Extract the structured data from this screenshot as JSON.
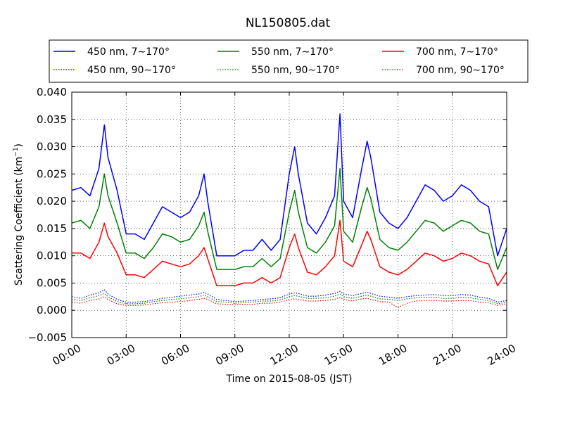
{
  "chart_data": {
    "type": "line",
    "title": "NL150805.dat",
    "xlabel": "Time on 2015-08-05 (JST)",
    "ylabel": "Scattering Coefficient (km",
    "ylabel_sup": "−1",
    "ylabel_end": ")",
    "xlim_hours": [
      0,
      24
    ],
    "ylim": [
      -0.005,
      0.04
    ],
    "grid": true,
    "legend_position": "above plot, 3 columns",
    "x_ticks": [
      {
        "hour": 0,
        "label": "00:00"
      },
      {
        "hour": 3,
        "label": "03:00"
      },
      {
        "hour": 6,
        "label": "06:00"
      },
      {
        "hour": 9,
        "label": "09:00"
      },
      {
        "hour": 12,
        "label": "12:00"
      },
      {
        "hour": 15,
        "label": "15:00"
      },
      {
        "hour": 18,
        "label": "18:00"
      },
      {
        "hour": 21,
        "label": "21:00"
      },
      {
        "hour": 24,
        "label": "24:00"
      }
    ],
    "y_ticks": [
      {
        "value": -0.005,
        "label": "−0.005"
      },
      {
        "value": 0.0,
        "label": "0.000"
      },
      {
        "value": 0.005,
        "label": "0.005"
      },
      {
        "value": 0.01,
        "label": "0.010"
      },
      {
        "value": 0.015,
        "label": "0.015"
      },
      {
        "value": 0.02,
        "label": "0.020"
      },
      {
        "value": 0.025,
        "label": "0.025"
      },
      {
        "value": 0.03,
        "label": "0.030"
      },
      {
        "value": 0.035,
        "label": "0.035"
      },
      {
        "value": 0.04,
        "label": "0.040"
      }
    ],
    "x_hours": [
      0,
      0.5,
      1,
      1.5,
      1.8,
      2,
      2.5,
      3,
      3.5,
      4,
      4.5,
      5,
      5.5,
      6,
      6.5,
      7,
      7.3,
      7.5,
      8,
      8.5,
      9,
      9.5,
      10,
      10.5,
      11,
      11.5,
      12,
      12.3,
      12.5,
      13,
      13.5,
      14,
      14.5,
      14.8,
      15,
      15.5,
      16,
      16.3,
      16.5,
      17,
      17.5,
      18,
      18.5,
      19,
      19.5,
      20,
      20.5,
      21,
      21.5,
      22,
      22.5,
      23,
      23.5,
      24
    ],
    "series": [
      {
        "name": "450 nm, 7∼170°",
        "color": "#0000ff",
        "style": "solid",
        "values": [
          0.022,
          0.0225,
          0.021,
          0.026,
          0.034,
          0.028,
          0.022,
          0.014,
          0.014,
          0.013,
          0.016,
          0.019,
          0.018,
          0.017,
          0.018,
          0.021,
          0.025,
          0.02,
          0.01,
          0.01,
          0.01,
          0.011,
          0.011,
          0.013,
          0.011,
          0.013,
          0.025,
          0.03,
          0.025,
          0.016,
          0.014,
          0.017,
          0.021,
          0.036,
          0.02,
          0.017,
          0.026,
          0.031,
          0.028,
          0.018,
          0.016,
          0.015,
          0.017,
          0.02,
          0.023,
          0.022,
          0.02,
          0.021,
          0.023,
          0.022,
          0.02,
          0.019,
          0.01,
          0.015
        ]
      },
      {
        "name": "450 nm, 90∼170°",
        "color": "#0000ff",
        "style": "dotted",
        "values": [
          0.0025,
          0.0022,
          0.0028,
          0.0032,
          0.0038,
          0.003,
          0.002,
          0.0015,
          0.0015,
          0.0016,
          0.0019,
          0.0022,
          0.0024,
          0.0026,
          0.0028,
          0.003,
          0.0033,
          0.003,
          0.002,
          0.0018,
          0.0016,
          0.0017,
          0.0018,
          0.002,
          0.0021,
          0.0023,
          0.003,
          0.0032,
          0.0031,
          0.0026,
          0.0026,
          0.0028,
          0.0031,
          0.0035,
          0.003,
          0.0027,
          0.0031,
          0.0033,
          0.0031,
          0.0026,
          0.0024,
          0.0022,
          0.0025,
          0.0027,
          0.0028,
          0.0029,
          0.0027,
          0.0027,
          0.0029,
          0.0028,
          0.0024,
          0.0022,
          0.0015,
          0.0018
        ]
      },
      {
        "name": "550 nm, 7∼170°",
        "color": "#008000",
        "style": "solid",
        "values": [
          0.016,
          0.0165,
          0.015,
          0.019,
          0.025,
          0.021,
          0.016,
          0.0105,
          0.0105,
          0.0095,
          0.0115,
          0.014,
          0.0135,
          0.0125,
          0.013,
          0.0155,
          0.018,
          0.0145,
          0.0075,
          0.0075,
          0.0075,
          0.008,
          0.008,
          0.0095,
          0.008,
          0.0095,
          0.018,
          0.022,
          0.018,
          0.0115,
          0.0105,
          0.0125,
          0.0155,
          0.026,
          0.0145,
          0.0125,
          0.019,
          0.0225,
          0.0205,
          0.013,
          0.0115,
          0.011,
          0.0125,
          0.0145,
          0.0165,
          0.016,
          0.0145,
          0.0155,
          0.0165,
          0.016,
          0.0145,
          0.014,
          0.0075,
          0.0115
        ]
      },
      {
        "name": "550 nm, 90∼170°",
        "color": "#008000",
        "style": "dotted",
        "values": [
          0.002,
          0.0018,
          0.0023,
          0.0027,
          0.0031,
          0.0025,
          0.0016,
          0.0012,
          0.0012,
          0.0013,
          0.0016,
          0.0018,
          0.002,
          0.0021,
          0.0023,
          0.0025,
          0.0028,
          0.0025,
          0.0016,
          0.0015,
          0.0013,
          0.0014,
          0.0015,
          0.0017,
          0.0017,
          0.0019,
          0.0025,
          0.0027,
          0.0026,
          0.0022,
          0.0022,
          0.0023,
          0.0026,
          0.003,
          0.0025,
          0.0022,
          0.0026,
          0.0028,
          0.0026,
          0.0021,
          0.002,
          0.0018,
          0.0021,
          0.0023,
          0.0024,
          0.0024,
          0.0022,
          0.0022,
          0.0024,
          0.0023,
          0.002,
          0.0018,
          0.0012,
          0.0015
        ]
      },
      {
        "name": "700 nm, 7∼170°",
        "color": "#ff0000",
        "style": "solid",
        "values": [
          0.0105,
          0.0105,
          0.0095,
          0.0125,
          0.016,
          0.0135,
          0.0105,
          0.0065,
          0.0065,
          0.006,
          0.0075,
          0.009,
          0.0085,
          0.008,
          0.0085,
          0.01,
          0.0115,
          0.0095,
          0.0045,
          0.0045,
          0.0045,
          0.005,
          0.005,
          0.006,
          0.005,
          0.006,
          0.0115,
          0.014,
          0.0115,
          0.007,
          0.0065,
          0.008,
          0.01,
          0.0165,
          0.009,
          0.008,
          0.012,
          0.0145,
          0.013,
          0.008,
          0.007,
          0.0065,
          0.0075,
          0.009,
          0.0105,
          0.01,
          0.009,
          0.0095,
          0.0105,
          0.01,
          0.009,
          0.0085,
          0.0045,
          0.007
        ]
      },
      {
        "name": "700 nm, 90∼170°",
        "color": "#ff0000",
        "style": "dotted",
        "values": [
          0.0015,
          0.0013,
          0.0018,
          0.0021,
          0.0025,
          0.002,
          0.0012,
          0.0009,
          0.0009,
          0.001,
          0.0012,
          0.0014,
          0.0015,
          0.0016,
          0.0018,
          0.002,
          0.0022,
          0.002,
          0.0012,
          0.0011,
          0.001,
          0.0011,
          0.0011,
          0.0013,
          0.0013,
          0.0015,
          0.002,
          0.0021,
          0.002,
          0.0017,
          0.0017,
          0.0018,
          0.002,
          0.0024,
          0.002,
          0.0017,
          0.0021,
          0.0022,
          0.002,
          0.0016,
          0.0015,
          0.0005,
          0.0013,
          0.0017,
          0.0018,
          0.0018,
          0.0017,
          0.0017,
          0.0018,
          0.0018,
          0.0015,
          0.0014,
          0.0009,
          0.0012
        ]
      }
    ]
  }
}
